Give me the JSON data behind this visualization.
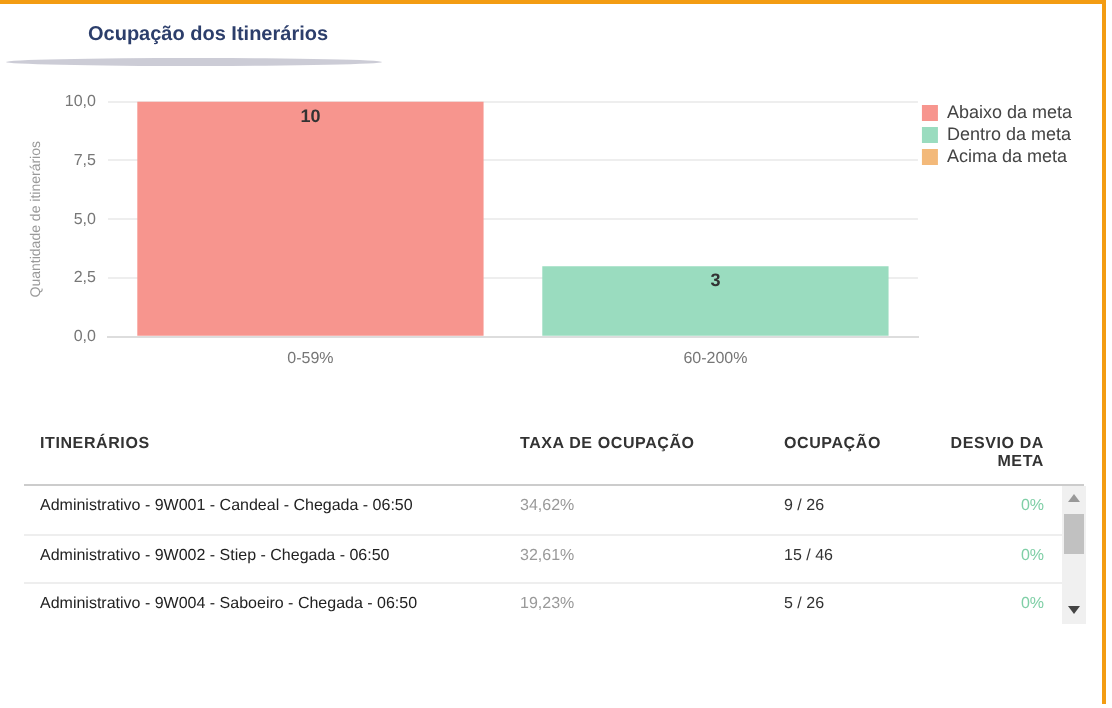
{
  "chart_data": [
    {
      "type": "bar",
      "title": "Ocupação dos Itinerários",
      "ylabel": "Quantidade de itinerários",
      "categories": [
        "0-59%",
        "60-200%"
      ],
      "series": [
        {
          "name": "Abaixo da meta",
          "color": "#f7958e",
          "values": [
            10,
            null
          ]
        },
        {
          "name": "Dentro da meta",
          "color": "#9adcbf",
          "values": [
            null,
            3
          ]
        },
        {
          "name": "Acima da meta",
          "color": "#f3b97a",
          "values": [
            null,
            null
          ]
        }
      ],
      "ylim": [
        0,
        10
      ],
      "yticks": [
        {
          "value": 0,
          "label": "0,0"
        },
        {
          "value": 2.5,
          "label": "2,5"
        },
        {
          "value": 5,
          "label": "5,0"
        },
        {
          "value": 7.5,
          "label": "7,5"
        },
        {
          "value": 10,
          "label": "10,0"
        }
      ],
      "grid": "y",
      "legend": "top right",
      "data_labels": true
    },
    {
      "type": "other",
      "annotations": [
        "ITINERÁRIOS",
        "TAXA DE OCUPAÇÃO",
        "OCUPAÇÃO",
        "DESVIO DA META",
        "Administrativo - 9W001 - Candeal - Chegada - 06:50",
        "34,62%",
        "9 / 26",
        "0%",
        "Administrativo - 9W002 - Stiep - Chegada - 06:50",
        "32,61%",
        "15 / 46",
        "0%",
        "Administrativo - 9W004 - Saboeiro - Chegada - 06:50",
        "19,23%",
        "5 / 26",
        "0%"
      ]
    }
  ]
}
